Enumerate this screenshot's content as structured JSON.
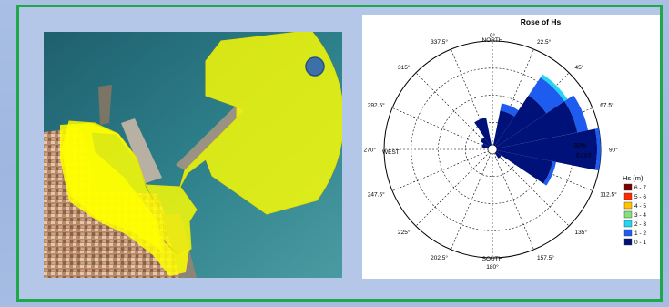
{
  "rose": {
    "title": "Rose of Hs",
    "angle_labels": [
      "0°",
      "22.5°",
      "45°",
      "67.5°",
      "90°",
      "112.5°",
      "135°",
      "157.5°",
      "180°",
      "202.5°",
      "225°",
      "247.5°",
      "270°",
      "292.5°",
      "315°",
      "337.5°"
    ],
    "direction_labels": {
      "north": "NORTH",
      "east": "EAST",
      "south": "SOUTH",
      "west": "WEST"
    },
    "percent_label": "30%",
    "legend": {
      "title": "Hs (m)",
      "items": [
        {
          "label": "6 - 7",
          "color": "#7a0000"
        },
        {
          "label": "5 - 6",
          "color": "#ff2a00"
        },
        {
          "label": "4 - 5",
          "color": "#ffc400"
        },
        {
          "label": "3 - 4",
          "color": "#86e07c"
        },
        {
          "label": "2 - 3",
          "color": "#22d5f0"
        },
        {
          "label": "1 - 2",
          "color": "#1e5cf0"
        },
        {
          "label": "0 - 1",
          "color": "#00127a"
        }
      ]
    }
  },
  "chart_data": {
    "type": "polar-bar",
    "title": "Rose of Hs",
    "max_percent": 30,
    "bins": [
      "0 - 1",
      "1 - 2",
      "2 - 3",
      "3 - 4",
      "4 - 5",
      "5 - 6",
      "6 - 7"
    ],
    "sectors": [
      {
        "direction": 22.5,
        "cumulative": [
          11,
          13,
          13
        ]
      },
      {
        "direction": 45,
        "cumulative": [
          18,
          24,
          25
        ]
      },
      {
        "direction": 67.5,
        "cumulative": [
          24,
          27
        ]
      },
      {
        "direction": 90,
        "cumulative": [
          29,
          30
        ]
      },
      {
        "direction": 112.5,
        "cumulative": [
          17,
          18
        ]
      },
      {
        "direction": 135,
        "cumulative": [
          3
        ]
      },
      {
        "direction": 292.5,
        "cumulative": [
          3
        ]
      },
      {
        "direction": 315,
        "cumulative": [
          4
        ]
      },
      {
        "direction": 337.5,
        "cumulative": [
          9
        ]
      }
    ]
  },
  "colors": {
    "frame": "#1fa84a",
    "background": "#a9bfe4",
    "zone": "#ffff00",
    "marker": "#3d6fa8"
  }
}
